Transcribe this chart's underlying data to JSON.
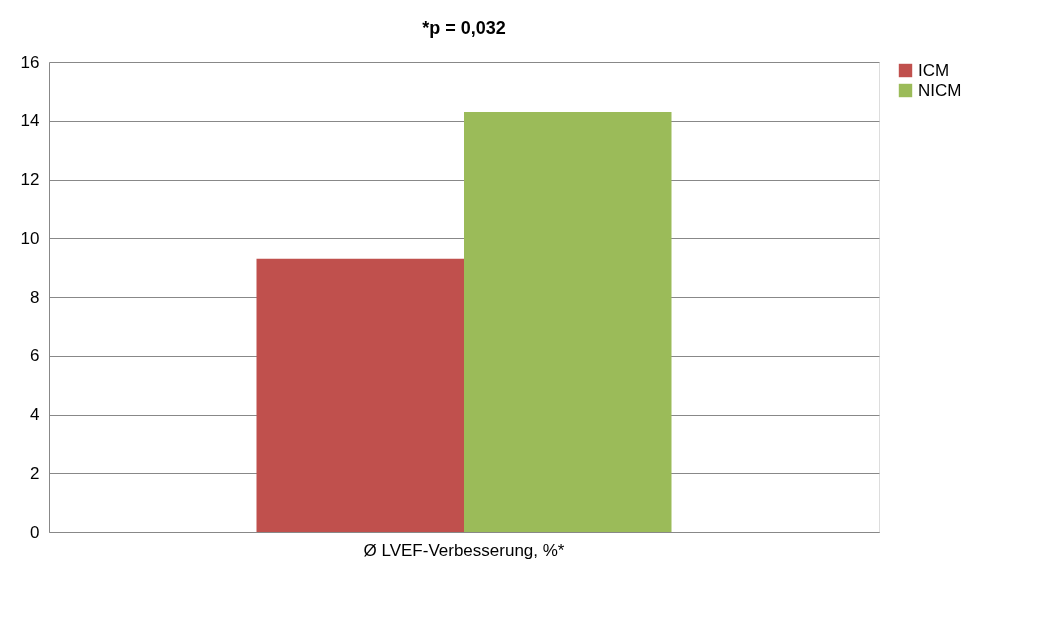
{
  "chart_data": {
    "type": "bar",
    "title": "*p = 0,032",
    "categories": [
      "Ø LVEF-Verbesserung, %*"
    ],
    "series": [
      {
        "name": "ICM",
        "color": "#c0504d",
        "values": [
          9.3
        ]
      },
      {
        "name": "NICM",
        "color": "#9bbb59",
        "values": [
          14.3
        ]
      }
    ],
    "ylim": [
      0,
      16
    ],
    "yticks": [
      0,
      2,
      4,
      6,
      8,
      10,
      12,
      14,
      16
    ],
    "grid": "y",
    "legend": "right"
  }
}
